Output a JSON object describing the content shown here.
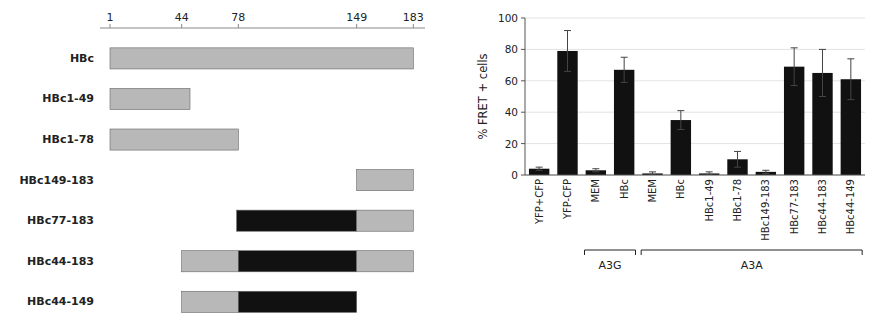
{
  "chart_data": [
    {
      "type": "range_bar",
      "orientation": "horizontal",
      "categories": [
        "HBc",
        "HBc1-49",
        "HBc1-78",
        "HBc149-183",
        "HBc77-183",
        "HBc44-183",
        "HBc44-149"
      ],
      "segments": [
        [
          {
            "start": 1,
            "end": 183,
            "color": "#b8b8b8"
          }
        ],
        [
          {
            "start": 1,
            "end": 49,
            "color": "#b8b8b8"
          }
        ],
        [
          {
            "start": 1,
            "end": 78,
            "color": "#b8b8b8"
          }
        ],
        [
          {
            "start": 149,
            "end": 183,
            "color": "#b8b8b8"
          }
        ],
        [
          {
            "start": 77,
            "end": 149,
            "color": "#111111"
          },
          {
            "start": 149,
            "end": 183,
            "color": "#b8b8b8"
          }
        ],
        [
          {
            "start": 44,
            "end": 78,
            "color": "#b8b8b8"
          },
          {
            "start": 78,
            "end": 149,
            "color": "#111111"
          },
          {
            "start": 149,
            "end": 183,
            "color": "#b8b8b8"
          }
        ],
        [
          {
            "start": 44,
            "end": 78,
            "color": "#b8b8b8"
          },
          {
            "start": 78,
            "end": 149,
            "color": "#111111"
          }
        ]
      ],
      "xlim": [
        -5,
        190
      ],
      "xticks": [
        1,
        44,
        78,
        149,
        183
      ]
    },
    {
      "type": "bar",
      "categories": [
        "YFP+CFP",
        "YFP-CFP",
        "MEM",
        "HBc",
        "MEM",
        "HBc",
        "HBc1-49",
        "HBc1-78",
        "HBc149-183",
        "HBc77-183",
        "HBc44-183",
        "HBc44-149"
      ],
      "values": [
        4,
        79,
        3,
        67,
        1,
        35,
        1,
        10,
        2,
        69,
        65,
        61
      ],
      "errors": [
        1,
        13,
        1,
        8,
        1,
        6,
        1,
        5,
        1,
        12,
        15,
        13
      ],
      "color": "#111111",
      "ylabel": "% FRET + cells",
      "ylim": [
        0,
        100
      ],
      "yticks": [
        0,
        20,
        40,
        60,
        80,
        100
      ],
      "groups": [
        {
          "label": "A3G",
          "start": 2,
          "end": 3
        },
        {
          "label": "A3A",
          "start": 4,
          "end": 11
        }
      ]
    }
  ]
}
